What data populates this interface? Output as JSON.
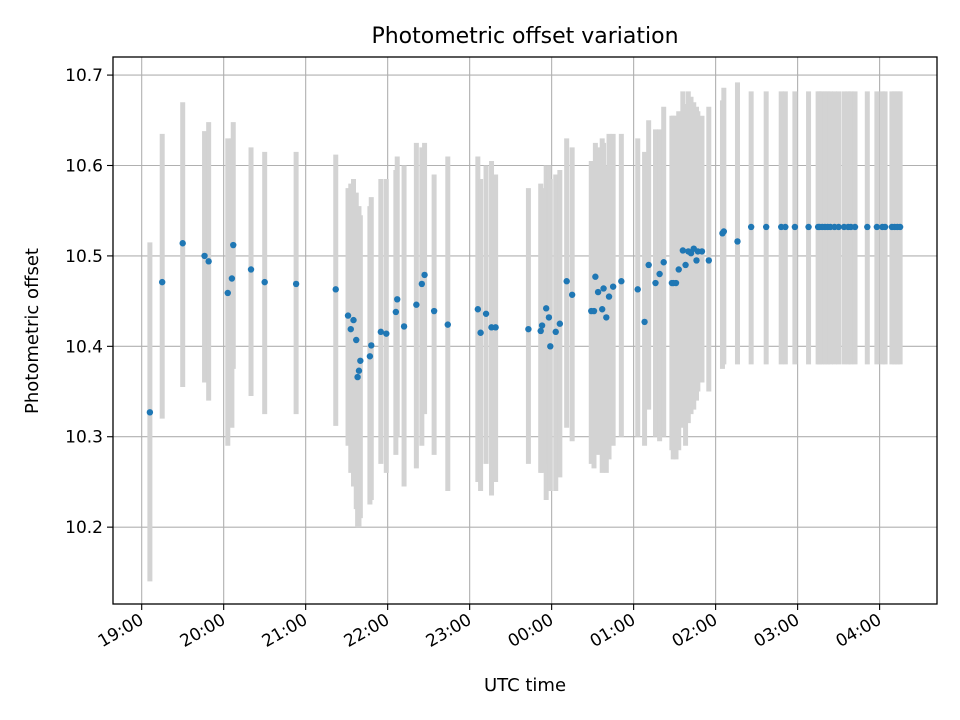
{
  "chart_data": {
    "type": "scatter",
    "title": "Photometric offset variation",
    "xlabel": "UTC time",
    "ylabel": "Photometric offset",
    "x_ticks": [
      "19:00",
      "20:00",
      "21:00",
      "22:00",
      "23:00",
      "00:00",
      "01:00",
      "02:00",
      "03:00",
      "04:00"
    ],
    "y_ticks": [
      "10.2",
      "10.3",
      "10.4",
      "10.5",
      "10.6",
      "10.7"
    ],
    "xlim_hours_after_1900": [
      -0.35,
      9.7
    ],
    "ylim": [
      10.115,
      10.72
    ],
    "grid": true,
    "marker_color": "#1f77b4",
    "errorbar_color": "#d3d3d3",
    "series": [
      {
        "x": [
          "19:06",
          "19:15",
          "19:30",
          "19:46",
          "19:49",
          "20:03",
          "20:06",
          "20:07",
          "20:20",
          "20:30",
          "20:53",
          "21:22",
          "21:31",
          "21:33",
          "21:35",
          "21:37",
          "21:38",
          "21:39",
          "21:40",
          "21:47",
          "21:48",
          "21:55",
          "21:59",
          "22:06",
          "22:07",
          "22:12",
          "22:21",
          "22:25",
          "22:27",
          "22:34",
          "22:44",
          "23:06",
          "23:08",
          "23:12",
          "23:16",
          "23:19",
          "23:43",
          "23:52",
          "23:53",
          "23:56",
          "23:58",
          "23:59",
          "00:03",
          "00:06",
          "00:11",
          "00:15",
          "00:29",
          "00:31",
          "00:32",
          "00:34",
          "00:37",
          "00:38",
          "00:40",
          "00:42",
          "00:45",
          "00:51",
          "01:03",
          "01:08",
          "01:11",
          "01:16",
          "01:19",
          "01:22",
          "01:28",
          "01:29",
          "01:31",
          "01:33",
          "01:36",
          "01:38",
          "01:40",
          "01:42",
          "01:44",
          "01:46",
          "01:47",
          "01:50",
          "01:55",
          "02:05",
          "02:06",
          "02:16",
          "02:26",
          "02:37",
          "02:48",
          "02:51",
          "02:58",
          "03:08",
          "03:15",
          "03:16",
          "03:18",
          "03:20",
          "03:22",
          "03:24",
          "03:27",
          "03:30",
          "03:34",
          "03:37",
          "03:39",
          "03:42",
          "03:51",
          "03:58",
          "04:02",
          "04:04",
          "04:09",
          "04:11",
          "04:13",
          "04:15"
        ],
        "y": [
          10.327,
          10.471,
          10.514,
          10.5,
          10.494,
          10.459,
          10.475,
          10.512,
          10.485,
          10.471,
          10.469,
          10.463,
          10.434,
          10.419,
          10.429,
          10.407,
          10.366,
          10.373,
          10.384,
          10.389,
          10.401,
          10.416,
          10.414,
          10.438,
          10.452,
          10.422,
          10.446,
          10.469,
          10.479,
          10.439,
          10.424,
          10.441,
          10.415,
          10.436,
          10.421,
          10.421,
          10.419,
          10.417,
          10.423,
          10.442,
          10.432,
          10.4,
          10.416,
          10.425,
          10.472,
          10.457,
          10.439,
          10.439,
          10.477,
          10.46,
          10.441,
          10.464,
          10.432,
          10.455,
          10.466,
          10.472,
          10.463,
          10.427,
          10.49,
          10.47,
          10.48,
          10.493,
          10.47,
          10.47,
          10.47,
          10.485,
          10.506,
          10.49,
          10.505,
          10.503,
          10.508,
          10.495,
          10.505,
          10.505,
          10.495,
          10.525,
          10.527,
          10.516,
          10.532,
          10.532,
          10.532,
          10.532,
          10.532,
          10.532,
          10.532,
          10.532,
          10.532,
          10.532,
          10.532,
          10.532,
          10.532,
          10.532,
          10.532,
          10.532,
          10.532,
          10.532,
          10.532,
          10.532,
          10.532,
          10.532,
          10.532,
          10.532,
          10.532,
          10.532
        ],
        "y_lower": [
          10.14,
          10.32,
          10.355,
          10.36,
          10.34,
          10.29,
          10.31,
          10.375,
          10.345,
          10.325,
          10.325,
          10.312,
          10.29,
          10.26,
          10.245,
          10.22,
          10.2,
          10.2,
          10.21,
          10.225,
          10.23,
          10.27,
          10.26,
          10.28,
          10.3,
          10.245,
          10.265,
          10.29,
          10.325,
          10.28,
          10.24,
          10.25,
          10.24,
          10.27,
          10.235,
          10.25,
          10.27,
          10.26,
          10.26,
          10.23,
          10.27,
          10.24,
          10.24,
          10.255,
          10.31,
          10.295,
          10.27,
          10.265,
          10.3,
          10.28,
          10.26,
          10.29,
          10.26,
          10.275,
          10.29,
          10.3,
          10.3,
          10.29,
          10.33,
          10.3,
          10.295,
          10.3,
          10.285,
          10.275,
          10.275,
          10.285,
          10.31,
          10.29,
          10.315,
          10.325,
          10.33,
          10.34,
          10.35,
          10.36,
          10.35,
          10.375,
          10.38,
          10.38,
          10.38,
          10.38,
          10.38,
          10.38,
          10.38,
          10.38,
          10.38,
          10.38,
          10.38,
          10.38,
          10.38,
          10.38,
          10.38,
          10.38,
          10.38,
          10.38,
          10.38,
          10.38,
          10.38,
          10.38,
          10.38,
          10.38,
          10.38,
          10.38,
          10.38,
          10.38
        ],
        "y_upper": [
          10.515,
          10.635,
          10.67,
          10.638,
          10.648,
          10.63,
          10.63,
          10.648,
          10.62,
          10.615,
          10.615,
          10.612,
          10.575,
          10.58,
          10.585,
          10.57,
          10.545,
          10.555,
          10.545,
          10.555,
          10.565,
          10.585,
          10.585,
          10.595,
          10.61,
          10.6,
          10.625,
          10.62,
          10.625,
          10.59,
          10.61,
          10.61,
          10.585,
          10.6,
          10.605,
          10.59,
          10.575,
          10.58,
          10.575,
          10.6,
          10.6,
          10.585,
          10.59,
          10.595,
          10.63,
          10.62,
          10.605,
          10.605,
          10.625,
          10.62,
          10.63,
          10.625,
          10.6,
          10.635,
          10.635,
          10.635,
          10.63,
          10.615,
          10.65,
          10.64,
          10.64,
          10.665,
          10.655,
          10.655,
          10.655,
          10.66,
          10.682,
          10.668,
          10.682,
          10.676,
          10.67,
          10.665,
          10.66,
          10.655,
          10.665,
          10.672,
          10.686,
          10.692,
          10.682,
          10.682,
          10.682,
          10.682,
          10.682,
          10.682,
          10.682,
          10.682,
          10.682,
          10.682,
          10.682,
          10.682,
          10.682,
          10.682,
          10.682,
          10.682,
          10.682,
          10.682,
          10.682,
          10.682,
          10.682,
          10.682,
          10.682,
          10.682,
          10.682,
          10.682
        ]
      }
    ]
  }
}
